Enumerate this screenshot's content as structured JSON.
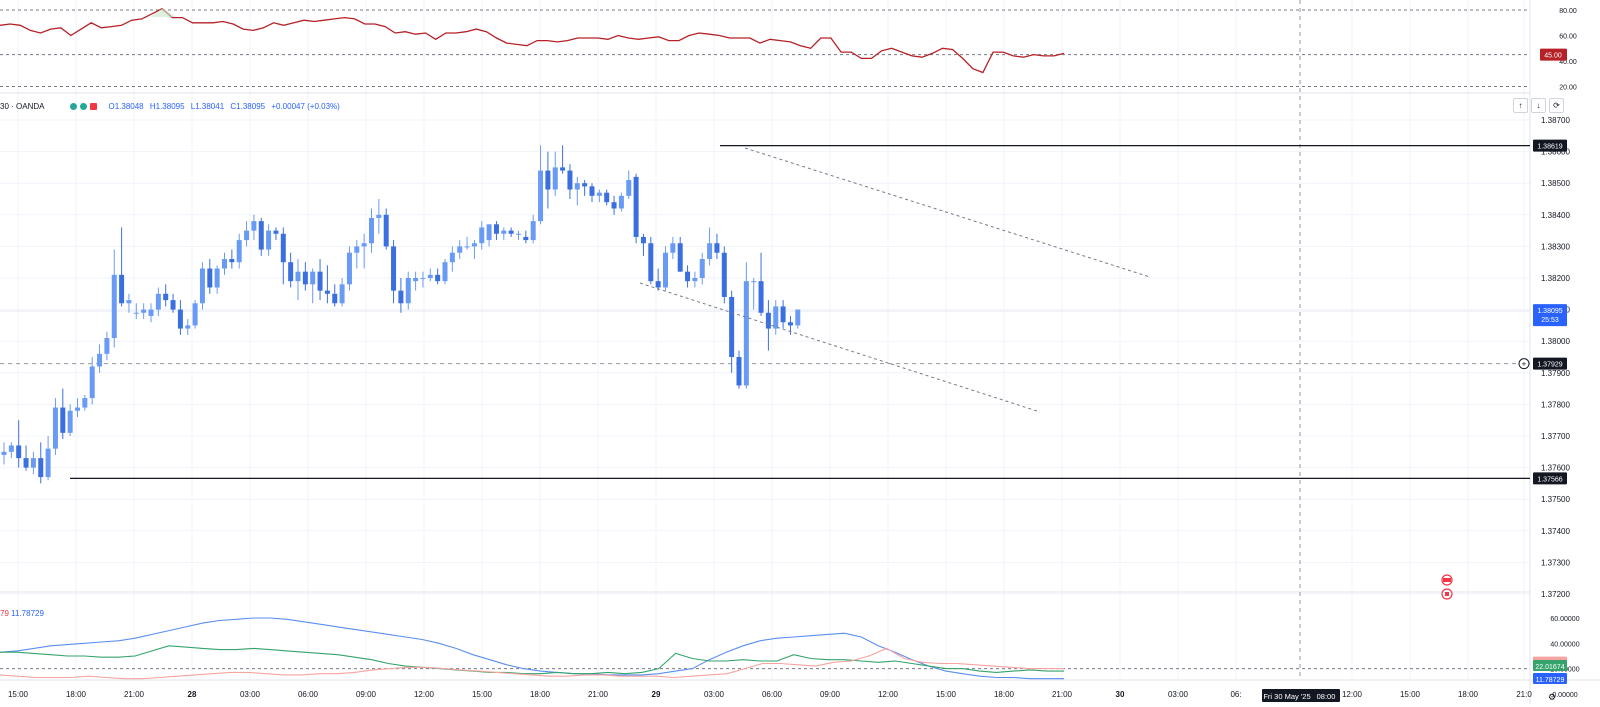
{
  "symbol": {
    "name": "30 · OANDA",
    "open": "O1.38048",
    "high": "H1.38095",
    "low": "L1.38041",
    "close": "C1.38095",
    "change": "+0.00047 (+0.03%)"
  },
  "colors": {
    "up": "#6a9bf4",
    "down": "#3b6fe0",
    "rsi": "#b52127",
    "adx": "#5b8ef0",
    "di_plus": "#34a36c",
    "di_minus": "#f7a3a0"
  },
  "rsi_axis": {
    "ticks": [
      "80.00",
      "60.00",
      "40.00",
      "20.00"
    ],
    "current": "45.00"
  },
  "price_axis": {
    "ticks": [
      "1.38700",
      "1.38600",
      "1.38500",
      "1.38400",
      "1.38300",
      "1.38200",
      "1.38100",
      "1.38000",
      "1.37900",
      "1.37800",
      "1.37700",
      "1.37600",
      "1.37500",
      "1.37400",
      "1.37300",
      "1.37200"
    ],
    "resistance": "1.38619",
    "support": "1.37566",
    "crosshair": "1.37929",
    "last_price": "1.38095",
    "countdown": "25:53"
  },
  "dmi_axis": {
    "ticks": [
      "60.00000",
      "40.00000",
      "20.00000",
      "0.00000"
    ],
    "values": [
      "24.71979",
      "22.01674",
      "11.78729"
    ]
  },
  "dmi_label": {
    "a": "79",
    "b": "11.78729"
  },
  "time_axis": {
    "labels": [
      "15:00",
      "18:00",
      "21:00",
      "28",
      "03:00",
      "06:00",
      "09:00",
      "12:00",
      "15:00",
      "18:00",
      "21:00",
      "29",
      "03:00",
      "06:00",
      "09:00",
      "12:00",
      "15:00",
      "18:00",
      "21:00",
      "30",
      "03:00",
      "06:",
      "12:00",
      "15:00",
      "18:00",
      "21:0"
    ],
    "crosshair": "Fri 30 May '25",
    "crosshair_time": "08:00"
  },
  "controls": {
    "up_arrow": "↑",
    "down_arrow": "↓",
    "reset": "⟳",
    "settings": "⚙"
  }
}
